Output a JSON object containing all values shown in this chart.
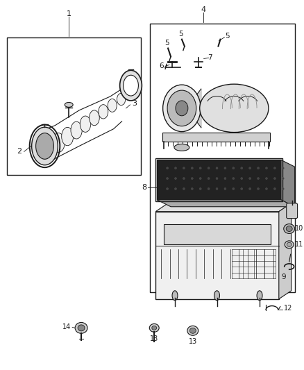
{
  "bg_color": "#ffffff",
  "line_color": "#1a1a1a",
  "fig_width": 4.38,
  "fig_height": 5.33,
  "dpi": 100
}
